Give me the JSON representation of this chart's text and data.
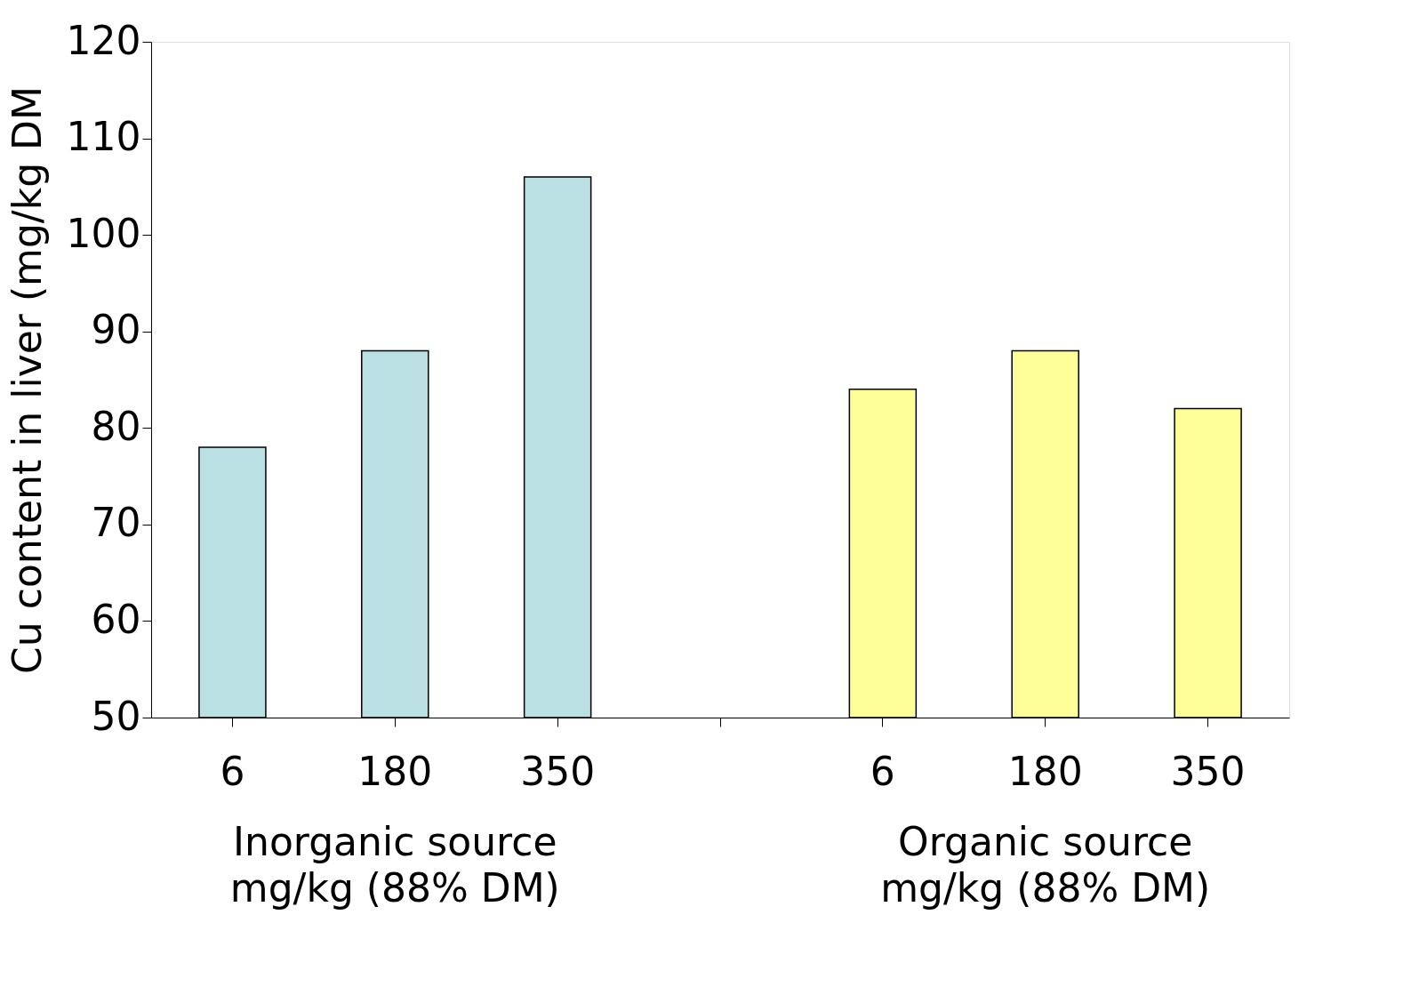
{
  "chart_data": {
    "type": "bar",
    "ylabel": "Cu content in liver (mg/kg DM",
    "categories": [
      "6",
      "180",
      "350",
      null,
      "6",
      "180",
      "350"
    ],
    "series": [
      {
        "color": "#bbe0e3",
        "values": [
          78,
          88,
          106,
          null,
          null,
          null,
          null
        ]
      },
      {
        "color": "#ffff99",
        "values": [
          null,
          null,
          null,
          null,
          84,
          88,
          82
        ]
      }
    ],
    "ylim": [
      50,
      120
    ],
    "yticks": [
      50,
      60,
      70,
      80,
      90,
      100,
      110,
      120
    ],
    "grid": false,
    "annotations": [
      "Inorganic source\nmg/kg (88% DM)",
      "Organic source\nmg/kg (88% DM)"
    ]
  }
}
